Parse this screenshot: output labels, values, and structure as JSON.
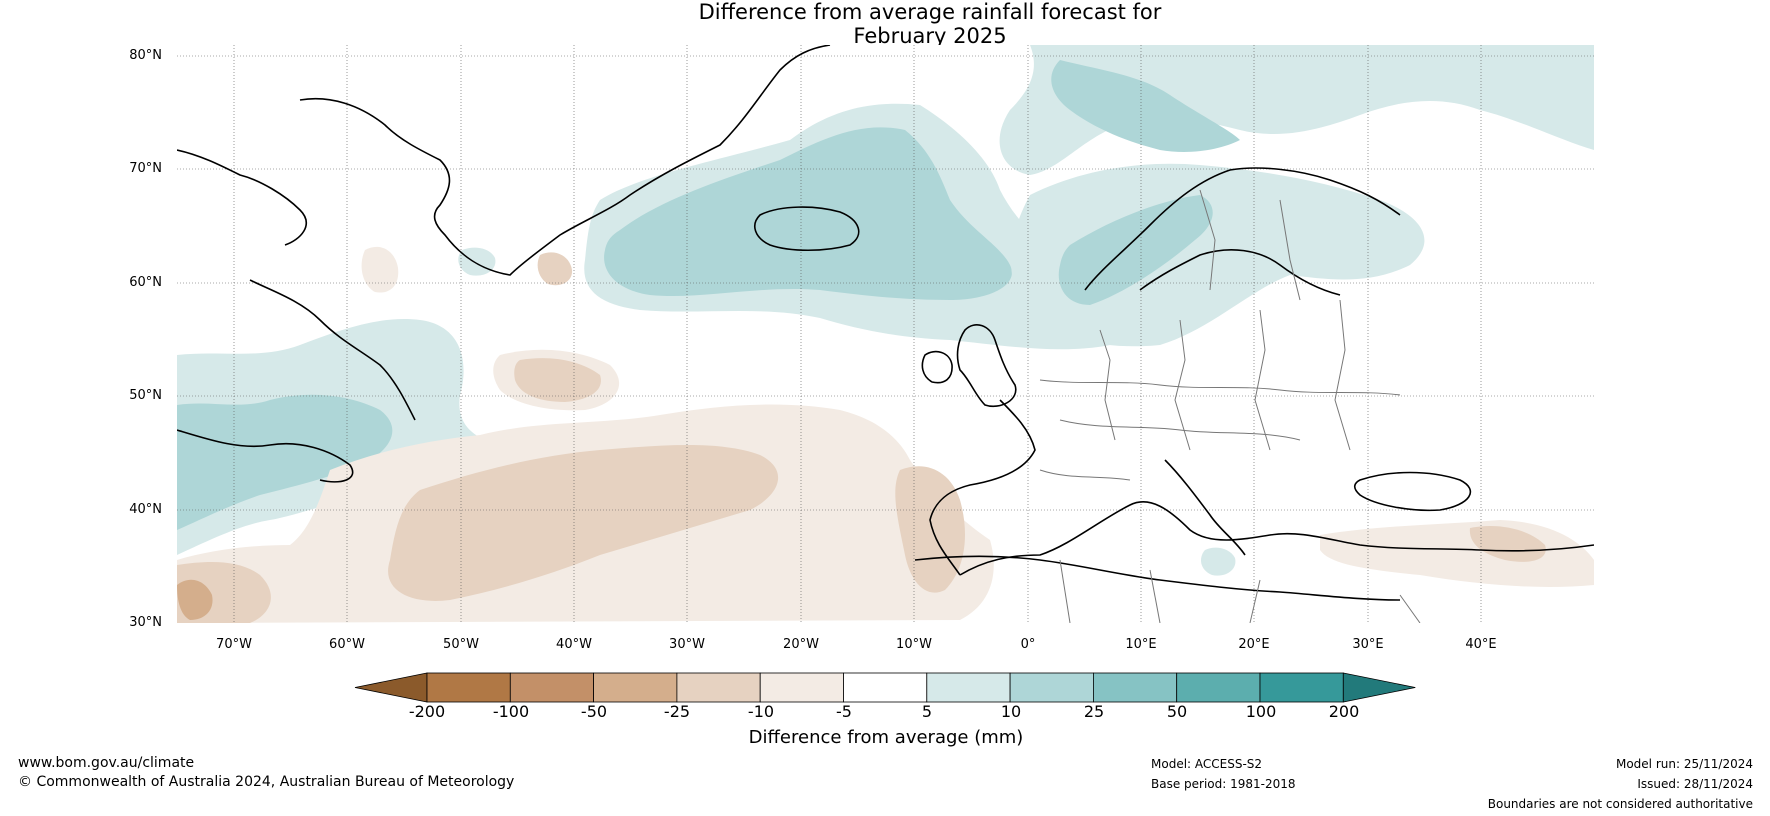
{
  "title": {
    "line1": "Difference from average rainfall forecast for",
    "line2": "February 2025"
  },
  "map": {
    "projection": "equirectangular",
    "lon_range": [
      -75,
      50
    ],
    "lat_range": [
      30,
      81
    ],
    "lat_ticks": [
      "30°N",
      "40°N",
      "50°N",
      "60°N",
      "70°N",
      "80°N"
    ],
    "lon_ticks": [
      "70°W",
      "60°W",
      "50°W",
      "40°W",
      "30°W",
      "20°W",
      "10°W",
      "0°",
      "10°E",
      "20°E",
      "30°E",
      "40°E"
    ],
    "grid": "dotted"
  },
  "legend": {
    "title": "Difference from average (mm)",
    "bounds": [
      "-200",
      "-100",
      "-50",
      "-25",
      "-10",
      "-5",
      "5",
      "10",
      "25",
      "50",
      "100",
      "200"
    ],
    "colors": [
      "#8b5a2b",
      "#b07845",
      "#c39068",
      "#d4ae8c",
      "#e6d2c1",
      "#f3ebe4",
      "#ffffff",
      "#d6e9e9",
      "#aed6d7",
      "#86c3c4",
      "#5caeae",
      "#36999a",
      "#227a7b"
    ]
  },
  "footer": {
    "url": "www.bom.gov.au/climate",
    "copyright": "© Commonwealth of Australia 2024, Australian Bureau of Meteorology",
    "model": "Model: ACCESS-S2",
    "base_period": "Base period: 1981-2018",
    "model_run": "Model run: 25/11/2024",
    "issued": "Issued: 28/11/2024",
    "disclaimer": "Boundaries are not considered authoritative"
  }
}
